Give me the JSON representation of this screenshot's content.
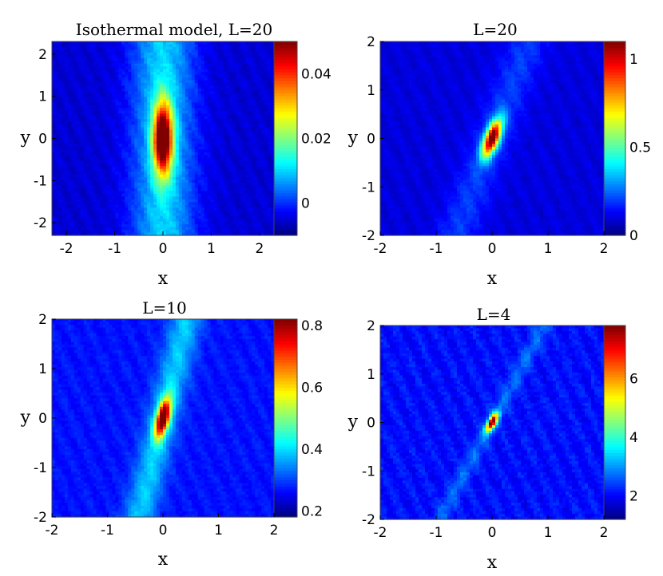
{
  "chart_data": [
    {
      "type": "heatmap",
      "title": "Isothermal model, L=20",
      "xlabel": "x",
      "ylabel": "y",
      "xlim": [
        -2.3,
        2.3
      ],
      "ylim": [
        -2.3,
        2.3
      ],
      "xticks": [
        -2,
        -1,
        0,
        1,
        2
      ],
      "yticks": [
        -2,
        -1,
        0,
        1,
        2
      ],
      "colorbar": {
        "min": -0.01,
        "max": 0.05,
        "ticks": [
          0,
          0.02,
          0.04
        ],
        "tick_labels": [
          "0",
          "0.02",
          "0.04"
        ]
      },
      "field": {
        "peak": 0.05,
        "background": -0.005,
        "center": [
          0,
          0
        ],
        "sigma_x": 0.14,
        "sigma_y": 0.6,
        "tilt_deg": 0,
        "band_level": 0.015,
        "band_sigma_x": 0.45,
        "noise": 0.002
      }
    },
    {
      "type": "heatmap",
      "title": "L=20",
      "xlabel": "x",
      "ylabel": "y",
      "xlim": [
        -2,
        2
      ],
      "ylim": [
        -2,
        2
      ],
      "xticks": [
        -2,
        -1,
        0,
        1,
        2
      ],
      "yticks": [
        -2,
        -1,
        0,
        1,
        2
      ],
      "colorbar": {
        "min": 0,
        "max": 1.1,
        "ticks": [
          0,
          0.5,
          1
        ],
        "tick_labels": [
          "0",
          "0.5",
          "1"
        ]
      },
      "field": {
        "peak": 1.1,
        "background": 0.1,
        "center": [
          0,
          0
        ],
        "sigma_x": 0.09,
        "sigma_y": 0.28,
        "tilt_deg": 18,
        "band_level": 0.1,
        "band_sigma_x": 0.25,
        "noise": 0.03
      }
    },
    {
      "type": "heatmap",
      "title": "L=10",
      "xlabel": "x",
      "ylabel": "y",
      "xlim": [
        -2,
        2
      ],
      "ylim": [
        -2,
        2
      ],
      "xticks": [
        -2,
        -1,
        0,
        1,
        2
      ],
      "yticks": [
        -2,
        -1,
        0,
        1,
        2
      ],
      "colorbar": {
        "min": 0.18,
        "max": 0.82,
        "ticks": [
          0.2,
          0.4,
          0.6,
          0.8
        ],
        "tick_labels": [
          "0.2",
          "0.4",
          "0.6",
          "0.8"
        ]
      },
      "field": {
        "peak": 0.82,
        "background": 0.27,
        "center": [
          0,
          0
        ],
        "sigma_x": 0.08,
        "sigma_y": 0.28,
        "tilt_deg": 12,
        "band_level": 0.12,
        "band_sigma_x": 0.2,
        "noise": 0.02
      }
    },
    {
      "type": "heatmap",
      "title": "L=4",
      "xlabel": "x",
      "ylabel": "y",
      "xlim": [
        -2,
        2
      ],
      "ylim": [
        -2,
        2
      ],
      "xticks": [
        -2,
        -1,
        0,
        1,
        2
      ],
      "yticks": [
        -2,
        -1,
        0,
        1,
        2
      ],
      "colorbar": {
        "min": 1.2,
        "max": 7.8,
        "ticks": [
          2,
          4,
          6
        ],
        "tick_labels": [
          "2",
          "4",
          "6"
        ]
      },
      "field": {
        "peak": 7.8,
        "background": 2.1,
        "center": [
          0,
          0
        ],
        "sigma_x": 0.05,
        "sigma_y": 0.14,
        "tilt_deg": 25,
        "band_level": 0.6,
        "band_sigma_x": 0.1,
        "noise": 0.3
      }
    }
  ]
}
